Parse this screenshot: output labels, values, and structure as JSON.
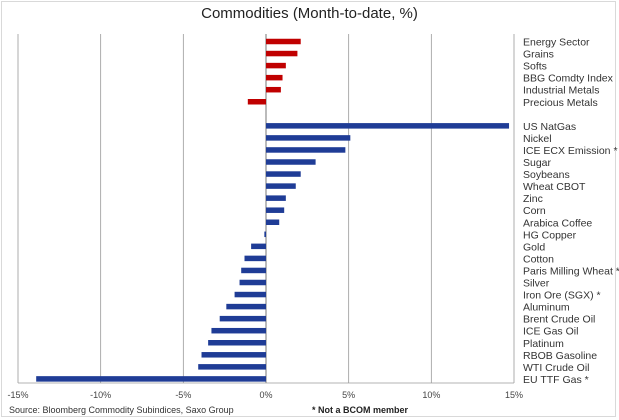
{
  "chart_data": {
    "type": "bar",
    "orientation": "horizontal",
    "title": "Commodities (Month-to-date, %)",
    "xlabel": "",
    "ylabel": "",
    "xlim": [
      -15,
      15
    ],
    "x_ticks": [
      "-15%",
      "-10%",
      "-5%",
      "0%",
      "5%",
      "10%",
      "15%"
    ],
    "grid": true,
    "groups": [
      {
        "color": "#c00000",
        "categories": [
          "Energy Sector",
          "Grains",
          "Softs",
          "BBG Comdty Index",
          "Industrial Metals",
          "Precious Metals"
        ],
        "values": [
          2.1,
          1.9,
          1.2,
          1.0,
          0.9,
          -1.1
        ]
      },
      {
        "color": "#1f3c96",
        "categories": [
          "US NatGas",
          "Nickel",
          "ICE ECX Emission *",
          "Sugar",
          "Soybeans",
          "Wheat CBOT",
          "Zinc",
          "Corn",
          "Arabica Coffee",
          "HG Copper",
          "Gold",
          "Cotton",
          "Paris Milling Wheat *",
          "Silver",
          "Iron Ore (SGX) *",
          "Aluminum",
          "Brent Crude Oil",
          "ICE Gas Oil",
          "Platinum",
          "RBOB Gasoline",
          "WTI Crude Oil",
          "EU TTF Gas *"
        ],
        "values": [
          14.7,
          5.1,
          4.8,
          3.0,
          2.1,
          1.8,
          1.2,
          1.1,
          0.8,
          -0.1,
          -0.9,
          -1.3,
          -1.5,
          -1.6,
          -1.9,
          -2.4,
          -2.8,
          -3.3,
          -3.5,
          -3.9,
          -4.1,
          -13.9
        ]
      }
    ]
  },
  "footer": {
    "source": "Source: Bloomberg Commodity Subindices, Saxo Group",
    "note": "* Not a BCOM member"
  }
}
